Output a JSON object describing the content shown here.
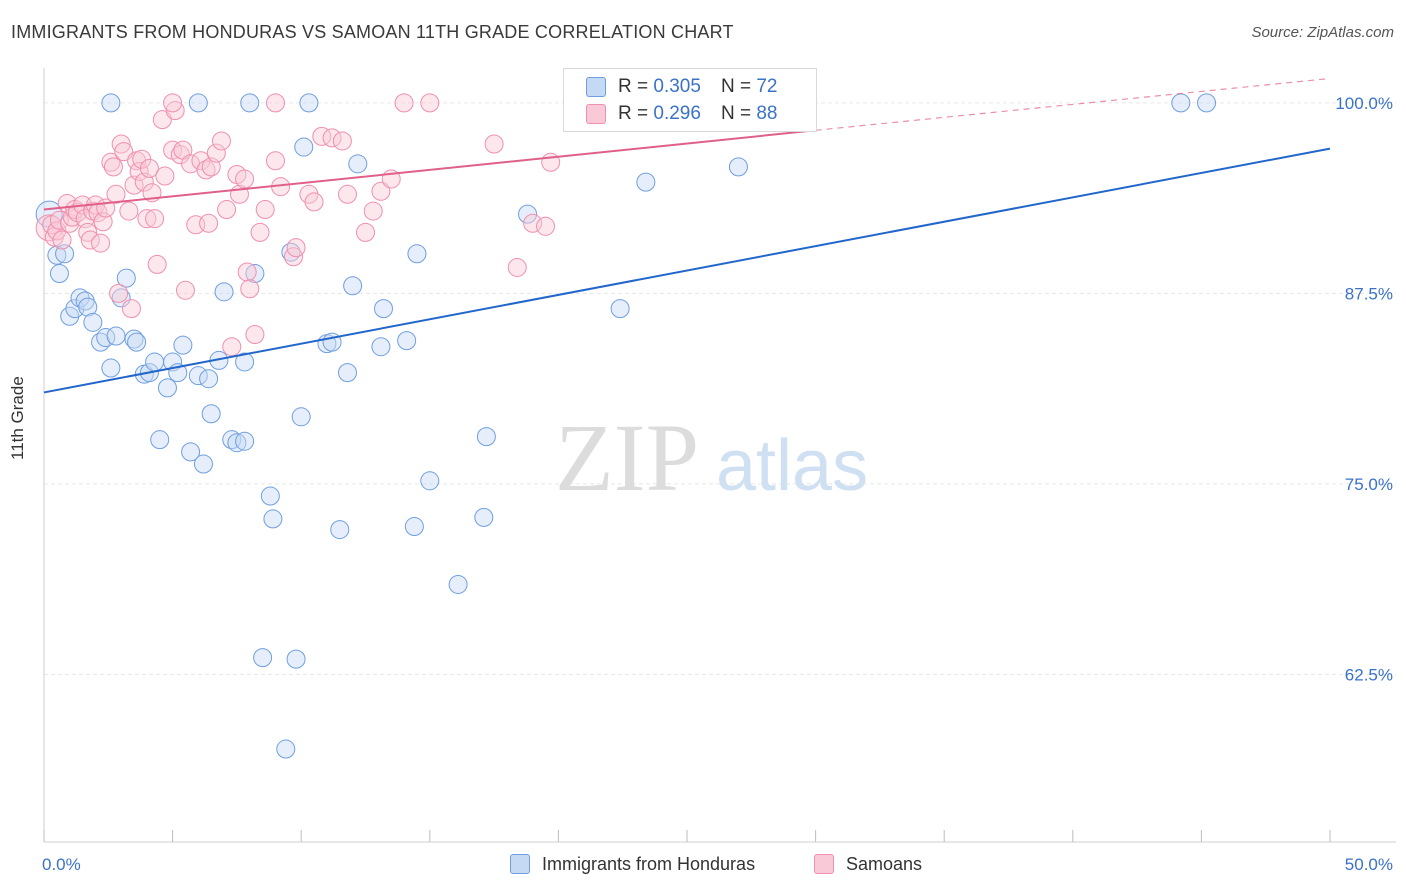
{
  "header": {
    "title": "IMMIGRANTS FROM HONDURAS VS SAMOAN 11TH GRADE CORRELATION CHART",
    "source": "Source: ZipAtlas.com"
  },
  "watermark": {
    "zip": "ZIP",
    "atlas": "atlas"
  },
  "legend_top": {
    "r_label": "R =",
    "n_label": "N =",
    "rows": [
      {
        "r": "0.305",
        "n": "72"
      },
      {
        "r": "0.296",
        "n": "88"
      }
    ]
  },
  "chart_data": {
    "type": "scatter",
    "title": "IMMIGRANTS FROM HONDURAS VS SAMOAN 11TH GRADE CORRELATION CHART",
    "xlabel": "",
    "ylabel": "11th Grade",
    "xlim": [
      0,
      50
    ],
    "ylim": [
      51.5,
      101.5
    ],
    "x_tick_labels": [
      "0.0%",
      "50.0%"
    ],
    "y_ticks": [
      62.5,
      75.0,
      87.5,
      100.0
    ],
    "y_tick_labels": [
      "62.5%",
      "75.0%",
      "87.5%",
      "100.0%"
    ],
    "grid": true,
    "legend_position": "bottom",
    "colors": {
      "honduras": "#6f9fe0",
      "samoans": "#f08fae",
      "honduras_line": "#2266cc",
      "samoans_line": "#e0608a"
    },
    "series": [
      {
        "name": "Immigrants from Honduras",
        "r": 0.305,
        "n": 72,
        "trend": {
          "x": [
            0,
            50
          ],
          "y": [
            81.0,
            97.0
          ]
        },
        "points": [
          [
            0.2,
            92.7
          ],
          [
            0.5,
            90.0
          ],
          [
            0.6,
            88.8
          ],
          [
            0.8,
            90.1
          ],
          [
            1.0,
            86.0
          ],
          [
            1.2,
            86.5
          ],
          [
            1.4,
            87.2
          ],
          [
            1.6,
            87.0
          ],
          [
            1.7,
            86.6
          ],
          [
            1.9,
            85.6
          ],
          [
            2.2,
            84.3
          ],
          [
            2.4,
            84.6
          ],
          [
            2.6,
            82.6
          ],
          [
            2.8,
            84.7
          ],
          [
            3.0,
            87.2
          ],
          [
            3.2,
            88.5
          ],
          [
            3.5,
            84.5
          ],
          [
            3.6,
            84.3
          ],
          [
            3.9,
            82.2
          ],
          [
            4.1,
            82.3
          ],
          [
            4.3,
            83.0
          ],
          [
            4.5,
            77.9
          ],
          [
            4.8,
            81.3
          ],
          [
            5.0,
            83.0
          ],
          [
            5.2,
            82.3
          ],
          [
            5.4,
            84.1
          ],
          [
            5.7,
            77.1
          ],
          [
            6.0,
            82.1
          ],
          [
            6.2,
            76.3
          ],
          [
            6.4,
            81.9
          ],
          [
            6.5,
            79.6
          ],
          [
            6.8,
            83.1
          ],
          [
            7.0,
            87.6
          ],
          [
            7.3,
            77.9
          ],
          [
            7.5,
            77.7
          ],
          [
            7.8,
            77.8
          ],
          [
            7.8,
            83.0
          ],
          [
            8.2,
            88.8
          ],
          [
            8.5,
            63.6
          ],
          [
            8.8,
            74.2
          ],
          [
            8.9,
            72.7
          ],
          [
            9.4,
            57.6
          ],
          [
            9.6,
            90.2
          ],
          [
            9.8,
            63.5
          ],
          [
            10.0,
            79.4
          ],
          [
            10.1,
            97.1
          ],
          [
            10.3,
            100.0
          ],
          [
            11.0,
            84.2
          ],
          [
            11.2,
            84.3
          ],
          [
            11.5,
            72.0
          ],
          [
            11.8,
            82.3
          ],
          [
            12.0,
            88.0
          ],
          [
            12.2,
            96.0
          ],
          [
            13.1,
            84.0
          ],
          [
            13.2,
            86.5
          ],
          [
            14.1,
            84.4
          ],
          [
            14.4,
            72.2
          ],
          [
            14.5,
            90.1
          ],
          [
            15.0,
            75.2
          ],
          [
            16.1,
            68.4
          ],
          [
            17.1,
            72.8
          ],
          [
            17.2,
            78.1
          ],
          [
            18.8,
            92.7
          ],
          [
            22.4,
            86.5
          ],
          [
            23.4,
            94.8
          ],
          [
            27.0,
            95.8
          ],
          [
            28.1,
            100.0
          ],
          [
            44.2,
            100.0
          ],
          [
            45.2,
            100.0
          ],
          [
            6.0,
            100.0
          ],
          [
            2.6,
            100.0
          ],
          [
            8.0,
            100.0
          ]
        ]
      },
      {
        "name": "Samoans",
        "r": 0.296,
        "n": 88,
        "trend": {
          "x": [
            0,
            30.0
          ],
          "y": [
            93.0,
            98.2
          ],
          "dashed_to": {
            "x": 50,
            "y": 101.6
          }
        },
        "points": [
          [
            0.2,
            91.8
          ],
          [
            0.3,
            92.0
          ],
          [
            0.4,
            91.2
          ],
          [
            0.5,
            91.6
          ],
          [
            0.6,
            92.3
          ],
          [
            0.7,
            91.0
          ],
          [
            0.9,
            93.4
          ],
          [
            1.0,
            92.1
          ],
          [
            1.1,
            92.5
          ],
          [
            1.2,
            93.0
          ],
          [
            1.3,
            92.8
          ],
          [
            1.5,
            93.3
          ],
          [
            1.6,
            92.4
          ],
          [
            1.7,
            91.5
          ],
          [
            1.8,
            91.0
          ],
          [
            1.9,
            92.9
          ],
          [
            2.0,
            93.3
          ],
          [
            2.1,
            92.8
          ],
          [
            2.2,
            90.8
          ],
          [
            2.3,
            92.2
          ],
          [
            2.4,
            93.1
          ],
          [
            2.6,
            96.1
          ],
          [
            2.7,
            95.8
          ],
          [
            2.8,
            94.0
          ],
          [
            2.9,
            87.5
          ],
          [
            3.0,
            97.3
          ],
          [
            3.1,
            96.8
          ],
          [
            3.3,
            92.9
          ],
          [
            3.4,
            86.5
          ],
          [
            3.5,
            94.6
          ],
          [
            3.6,
            96.2
          ],
          [
            3.7,
            95.5
          ],
          [
            3.8,
            96.3
          ],
          [
            3.9,
            94.8
          ],
          [
            4.0,
            92.4
          ],
          [
            4.1,
            95.7
          ],
          [
            4.2,
            94.1
          ],
          [
            4.3,
            92.4
          ],
          [
            4.4,
            89.4
          ],
          [
            4.6,
            98.9
          ],
          [
            4.7,
            95.2
          ],
          [
            5.0,
            96.9
          ],
          [
            5.1,
            99.5
          ],
          [
            5.3,
            96.6
          ],
          [
            5.4,
            96.9
          ],
          [
            5.5,
            87.7
          ],
          [
            5.7,
            96.0
          ],
          [
            5.9,
            92.0
          ],
          [
            6.1,
            96.2
          ],
          [
            6.3,
            95.6
          ],
          [
            6.4,
            92.1
          ],
          [
            6.5,
            95.8
          ],
          [
            6.7,
            96.7
          ],
          [
            6.9,
            97.5
          ],
          [
            7.1,
            93.0
          ],
          [
            7.3,
            84.0
          ],
          [
            7.5,
            95.3
          ],
          [
            7.6,
            94.0
          ],
          [
            7.8,
            95.0
          ],
          [
            7.9,
            88.9
          ],
          [
            8.0,
            87.8
          ],
          [
            8.2,
            84.8
          ],
          [
            8.4,
            91.5
          ],
          [
            8.6,
            93.0
          ],
          [
            9.0,
            96.2
          ],
          [
            9.2,
            94.5
          ],
          [
            9.7,
            89.9
          ],
          [
            9.8,
            90.5
          ],
          [
            10.3,
            94.0
          ],
          [
            10.5,
            93.5
          ],
          [
            10.8,
            97.8
          ],
          [
            11.2,
            97.7
          ],
          [
            11.6,
            97.5
          ],
          [
            11.8,
            94.0
          ],
          [
            12.5,
            91.5
          ],
          [
            12.8,
            92.9
          ],
          [
            13.1,
            94.2
          ],
          [
            13.5,
            95.0
          ],
          [
            14.0,
            100.0
          ],
          [
            15.0,
            100.0
          ],
          [
            17.5,
            97.3
          ],
          [
            18.4,
            89.2
          ],
          [
            19.0,
            92.1
          ],
          [
            19.5,
            91.9
          ],
          [
            19.7,
            96.1
          ],
          [
            5.0,
            100.0
          ],
          [
            9.0,
            100.0
          ],
          [
            22.0,
            100.0
          ]
        ]
      }
    ]
  },
  "bottom_legend": {
    "items": [
      {
        "label": "Immigrants from Honduras"
      },
      {
        "label": "Samoans"
      }
    ]
  }
}
